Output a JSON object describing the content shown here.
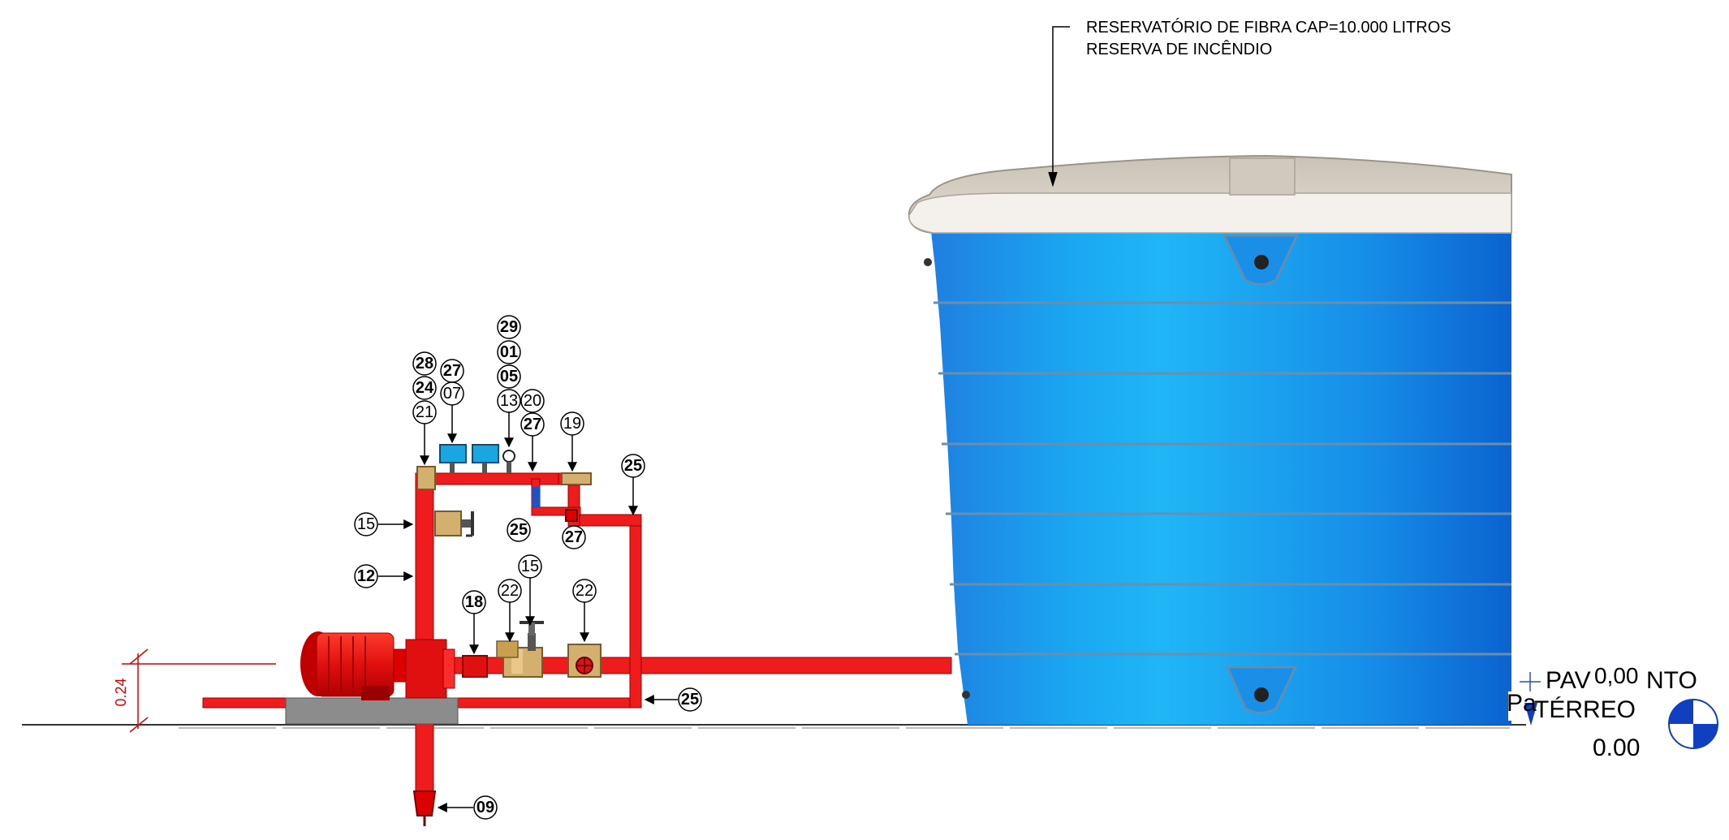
{
  "annotation": {
    "line1": "RESERVATÓRIO DE FIBRA CAP=10.000 LITROS",
    "line2": "RESERVA DE INCÊNDIO"
  },
  "level_marker": {
    "label_a": "PAV",
    "label_b": "NTO",
    "value_top": "0,00",
    "floor_label": "TÉRREO",
    "floor_prefix": "Pa",
    "value_bottom": "0.00"
  },
  "dimension": {
    "text": "0.24"
  },
  "tags": {
    "t29": "29",
    "t01": "01",
    "t05": "05",
    "t13": "13",
    "t20": "20",
    "t27a": "27",
    "t19": "19",
    "t28": "28",
    "t27b": "27",
    "t24": "24",
    "t07": "07",
    "t21": "21",
    "t25a": "25",
    "t15a": "15",
    "t25b": "25",
    "t27c": "27",
    "t12": "12",
    "t15b": "15",
    "t18": "18",
    "t22a": "22",
    "t22b": "22",
    "t25c": "25",
    "t09": "09"
  },
  "colors": {
    "pipe": "#ee1c1c",
    "tank_blue": "#1a8fe8",
    "tank_lid": "#d9d3c8",
    "base_gray": "#8c8c8c",
    "valve_brass": "#d4b070",
    "gauge_blue": "#1aa6e0",
    "dimension_red": "#e00000"
  }
}
